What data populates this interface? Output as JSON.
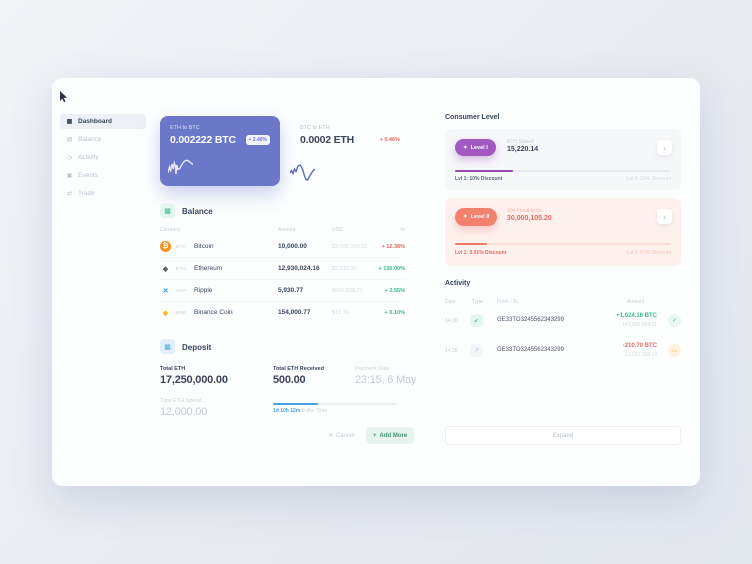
{
  "sidebar": {
    "items": [
      {
        "label": "Dashboard",
        "icon": "▦",
        "active": true
      },
      {
        "label": "Balance",
        "icon": "▤",
        "active": false
      },
      {
        "label": "Activity",
        "icon": "◷",
        "active": false
      },
      {
        "label": "Events",
        "icon": "▣",
        "active": false
      },
      {
        "label": "Trade",
        "icon": "⇄",
        "active": false
      }
    ]
  },
  "charts": [
    {
      "pair": "ETH to BTC",
      "value": "0.002222 BTC",
      "change": "+ 2.46%",
      "points": [
        [
          0,
          75
        ],
        [
          6,
          52
        ],
        [
          11,
          66
        ],
        [
          16,
          40
        ],
        [
          21,
          60
        ],
        [
          25,
          36
        ],
        [
          29,
          46
        ],
        [
          32,
          80
        ],
        [
          35,
          44
        ],
        [
          40,
          62
        ],
        [
          47,
          58
        ],
        [
          55,
          44
        ],
        [
          63,
          32
        ],
        [
          71,
          26
        ],
        [
          79,
          26
        ],
        [
          87,
          32
        ],
        [
          94,
          38
        ],
        [
          100,
          42
        ]
      ]
    },
    {
      "pair": "BTC to ETH",
      "value": "0.0002 ETH",
      "change": "+ 0.46%",
      "points": [
        [
          0,
          60
        ],
        [
          6,
          50
        ],
        [
          12,
          62
        ],
        [
          18,
          44
        ],
        [
          24,
          54
        ],
        [
          32,
          32
        ],
        [
          40,
          28
        ],
        [
          46,
          36
        ],
        [
          52,
          50
        ],
        [
          58,
          72
        ],
        [
          64,
          86
        ],
        [
          70,
          88
        ],
        [
          78,
          74
        ],
        [
          86,
          60
        ],
        [
          93,
          50
        ],
        [
          100,
          44
        ]
      ]
    }
  ],
  "balance": {
    "title": "Balance",
    "section_icon": "▦",
    "headers": {
      "currency": "Currency",
      "amount": "Amount",
      "usd": "USD",
      "percent": "%"
    },
    "rows": [
      {
        "symbol": "BTC",
        "name": "Bitcoin",
        "amount": "10,000.00",
        "usd": "$3,090,200.32",
        "change": "+ 12.38%",
        "icon": {
          "glyph": "₿",
          "bg": "#f7931a",
          "fg": "#ffffff"
        }
      },
      {
        "symbol": "ETH",
        "name": "Ethereum",
        "amount": "12,930,024.16",
        "usd": "$2,010.00",
        "change": "+ 150.00%",
        "icon": {
          "glyph": "◆",
          "bg": "transparent",
          "fg": "#5a6678"
        }
      },
      {
        "symbol": "XRP",
        "name": "Ripple",
        "amount": "5,930.77",
        "usd": "$940,030.77",
        "change": "+ 2.55%",
        "icon": {
          "glyph": "✕",
          "bg": "transparent",
          "fg": "#27a2db"
        }
      },
      {
        "symbol": "BNB",
        "name": "Binance Coin",
        "amount": "154,000.77",
        "usd": "$17.70",
        "change": "+ 0.10%",
        "icon": {
          "glyph": "◈",
          "bg": "transparent",
          "fg": "#f0b90b"
        }
      }
    ]
  },
  "deposit": {
    "title": "Deposit",
    "section_icon": "▦",
    "total_eth_label": "Total ETH",
    "total_eth_value": "17,250,000.00",
    "spend_label": "Total ETH Spend",
    "spend_value": "12,000.00",
    "received_label": "Total ETH Received",
    "received_value": "500.00",
    "payment_label": "Payment Date",
    "payment_value": "23:15, 6 May",
    "progress_pct": 36,
    "buffer_time": "1d 10h 12m",
    "buffer_label": "Buffer Time",
    "cancel_icon": "✕",
    "cancel_label": "Cancel",
    "add_icon": "+",
    "add_label": "Add More"
  },
  "consumer_level": {
    "title": "Consumer Level",
    "star": "✦",
    "chevron": "›",
    "levels": [
      {
        "badge": "Level I",
        "metric_label": "ETH Staked",
        "metric_value": "15,220.14",
        "progress_pct": 27,
        "lvl_left": "Lvl 1: 10% Discount",
        "lvl_right": "Lvl 2: 20% Discount"
      },
      {
        "badge": "Level II",
        "metric_label": "30d Funding for",
        "metric_value": "30,000,105.20",
        "progress_pct": 15,
        "lvl_left": "Lvl 1: 0.01% Discount",
        "lvl_right": "Lvl 2: 67% Discount"
      }
    ]
  },
  "activity": {
    "title": "Activity",
    "headers": {
      "date": "Date",
      "type": "Type",
      "from_to": "From / To",
      "amount": "Amount"
    },
    "rows": [
      {
        "date": "14:30",
        "type_icon": "↙",
        "address": "GE33TO3245562343299",
        "amount": "+1,024.16 BTC",
        "amount_sub": "141,595,594.01",
        "status_icon": "✓"
      },
      {
        "date": "14:30",
        "type_icon": "↗",
        "address": "GE33TO3245562343299",
        "amount": "-210.70 BTC",
        "amount_sub": "12,003,308.14",
        "status_icon": "•••"
      }
    ],
    "expand_label": "Expand"
  },
  "colors": {
    "page_background": "#e7eaf0",
    "card_background": "#fdfefe",
    "accent_purple": "#6b77c9",
    "level1_purple": "#a159c1",
    "level2_salmon": "#f28170",
    "positive_green": "#37b58f",
    "negative_red": "#e4685f",
    "info_blue": "#4aa3e0",
    "bitcoin_orange": "#f7931a"
  }
}
